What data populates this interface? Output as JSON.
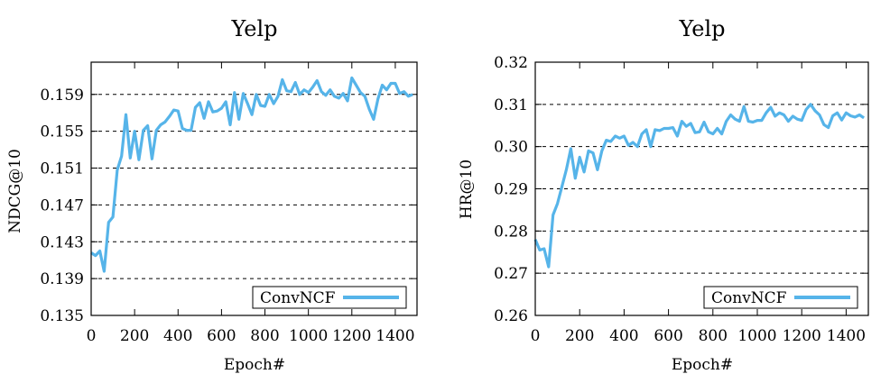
{
  "chart_data": [
    {
      "type": "line",
      "title": "Yelp",
      "xlabel": "Epoch#",
      "ylabel": "NDCG@10",
      "xlim": [
        0,
        1500
      ],
      "ylim": [
        0.135,
        0.1625
      ],
      "xticks": [
        0,
        200,
        400,
        600,
        800,
        1000,
        1200,
        1400
      ],
      "yticks": [
        0.135,
        0.139,
        0.143,
        0.147,
        0.151,
        0.155,
        0.159
      ],
      "ytick_labels": [
        "0.135",
        "0.139",
        "0.143",
        "0.147",
        "0.151",
        "0.155",
        "0.159"
      ],
      "grid": "horizontal-dashed",
      "legend_position": "bottom-right",
      "line_color": "#56B4E9",
      "series": [
        {
          "name": "ConvNCF",
          "x": [
            0,
            20,
            40,
            60,
            80,
            100,
            120,
            140,
            160,
            180,
            200,
            220,
            240,
            260,
            280,
            300,
            320,
            340,
            360,
            380,
            400,
            420,
            440,
            460,
            480,
            500,
            520,
            540,
            560,
            580,
            600,
            620,
            640,
            660,
            680,
            700,
            720,
            740,
            760,
            780,
            800,
            820,
            840,
            860,
            880,
            900,
            920,
            940,
            960,
            980,
            1000,
            1020,
            1040,
            1060,
            1080,
            1100,
            1120,
            1140,
            1160,
            1180,
            1200,
            1220,
            1240,
            1260,
            1280,
            1300,
            1320,
            1340,
            1360,
            1380,
            1400,
            1420,
            1440,
            1460,
            1480
          ],
          "y": [
            0.1418,
            0.1415,
            0.142,
            0.1398,
            0.1451,
            0.1457,
            0.1508,
            0.1523,
            0.1568,
            0.1521,
            0.155,
            0.1519,
            0.1551,
            0.1556,
            0.152,
            0.1551,
            0.1557,
            0.156,
            0.1566,
            0.1573,
            0.1572,
            0.1553,
            0.1551,
            0.1551,
            0.1576,
            0.1581,
            0.1564,
            0.1582,
            0.1571,
            0.1572,
            0.1575,
            0.1582,
            0.1557,
            0.1592,
            0.1563,
            0.1591,
            0.158,
            0.1568,
            0.159,
            0.1578,
            0.1577,
            0.159,
            0.158,
            0.1588,
            0.1606,
            0.1594,
            0.1593,
            0.1603,
            0.159,
            0.1595,
            0.1592,
            0.1598,
            0.1605,
            0.1593,
            0.1589,
            0.1595,
            0.1588,
            0.1586,
            0.1591,
            0.1583,
            0.1608,
            0.16,
            0.1592,
            0.1588,
            0.1574,
            0.1563,
            0.1585,
            0.16,
            0.1595,
            0.1602,
            0.1602,
            0.1591,
            0.1593,
            0.1588,
            0.159
          ]
        }
      ]
    },
    {
      "type": "line",
      "title": "Yelp",
      "xlabel": "Epoch#",
      "ylabel": "HR@10",
      "xlim": [
        0,
        1500
      ],
      "ylim": [
        0.26,
        0.32
      ],
      "xticks": [
        0,
        200,
        400,
        600,
        800,
        1000,
        1200,
        1400
      ],
      "yticks": [
        0.26,
        0.27,
        0.28,
        0.29,
        0.3,
        0.31,
        0.32
      ],
      "ytick_labels": [
        "0.26",
        "0.27",
        "0.28",
        "0.29",
        "0.30",
        "0.31",
        "0.32"
      ],
      "grid": "horizontal-dashed",
      "legend_position": "bottom-right",
      "line_color": "#56B4E9",
      "series": [
        {
          "name": "ConvNCF",
          "x": [
            0,
            20,
            40,
            60,
            80,
            100,
            120,
            140,
            160,
            180,
            200,
            220,
            240,
            260,
            280,
            300,
            320,
            340,
            360,
            380,
            400,
            420,
            440,
            460,
            480,
            500,
            520,
            540,
            560,
            580,
            600,
            620,
            640,
            660,
            680,
            700,
            720,
            740,
            760,
            780,
            800,
            820,
            840,
            860,
            880,
            900,
            920,
            940,
            960,
            980,
            1000,
            1020,
            1040,
            1060,
            1080,
            1100,
            1120,
            1140,
            1160,
            1180,
            1200,
            1220,
            1240,
            1260,
            1280,
            1300,
            1320,
            1340,
            1360,
            1380,
            1400,
            1420,
            1440,
            1460,
            1480
          ],
          "y": [
            0.278,
            0.2755,
            0.2758,
            0.2715,
            0.2838,
            0.2865,
            0.2905,
            0.2945,
            0.2995,
            0.2925,
            0.2975,
            0.294,
            0.299,
            0.2985,
            0.2945,
            0.299,
            0.3015,
            0.3012,
            0.3025,
            0.302,
            0.3025,
            0.3003,
            0.301,
            0.3,
            0.303,
            0.304,
            0.3,
            0.304,
            0.3038,
            0.3043,
            0.3043,
            0.3045,
            0.3025,
            0.306,
            0.3048,
            0.3055,
            0.3033,
            0.3035,
            0.3058,
            0.3035,
            0.303,
            0.3043,
            0.303,
            0.306,
            0.3075,
            0.3065,
            0.306,
            0.3095,
            0.306,
            0.3058,
            0.3062,
            0.3062,
            0.308,
            0.3093,
            0.3072,
            0.308,
            0.3075,
            0.306,
            0.3072,
            0.3065,
            0.3062,
            0.3088,
            0.31,
            0.3085,
            0.3075,
            0.3052,
            0.3045,
            0.3073,
            0.308,
            0.3063,
            0.308,
            0.3073,
            0.307,
            0.3075,
            0.3068
          ]
        }
      ]
    }
  ]
}
